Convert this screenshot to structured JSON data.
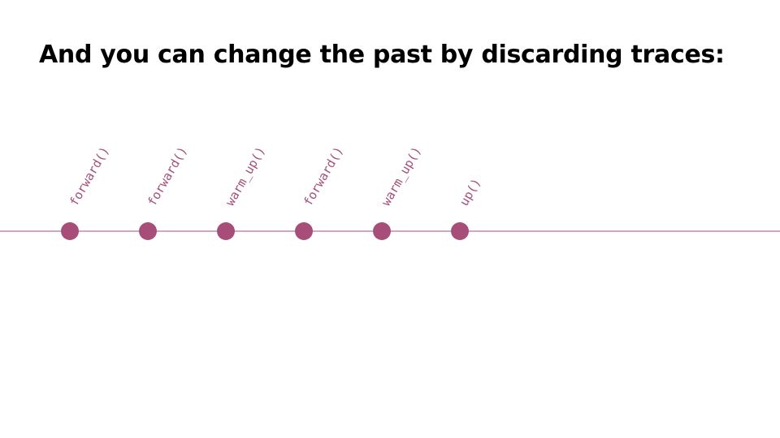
{
  "slide": {
    "title": "And you can change the past by discarding traces:"
  },
  "timeline": {
    "color": "#a64d79",
    "events": [
      {
        "label": "forward()"
      },
      {
        "label": "forward()"
      },
      {
        "label": "warm_up()"
      },
      {
        "label": "forward()"
      },
      {
        "label": "warm_up()"
      },
      {
        "label": "up()"
      }
    ]
  }
}
